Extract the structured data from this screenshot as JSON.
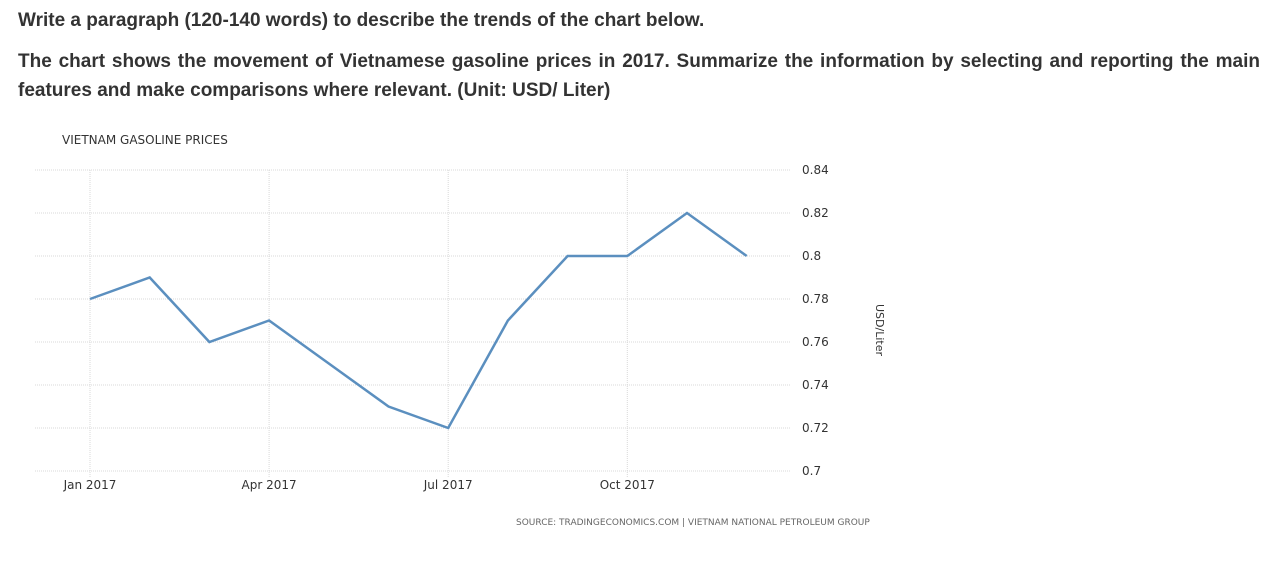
{
  "prompt": {
    "title": "Write a paragraph (120-140 words) to describe the trends of the chart below.",
    "body": "The chart shows the movement of Vietnamese gasoline prices in 2017. Summarize the information by selecting and reporting the main features and make comparisons where relevant. (Unit: USD/ Liter)"
  },
  "chart_data": {
    "type": "line",
    "title": "VIETNAM GASOLINE PRICES",
    "ylabel": "USD/Liter",
    "source": "SOURCE: TRADINGECONOMICS.COM | VIETNAM NATIONAL PETROLEUM GROUP",
    "x": [
      "2017-01",
      "2017-02",
      "2017-03",
      "2017-04",
      "2017-05",
      "2017-06",
      "2017-07",
      "2017-08",
      "2017-09",
      "2017-10",
      "2017-11",
      "2017-12"
    ],
    "x_ticks": [
      {
        "month_index": 0,
        "label": "Jan 2017"
      },
      {
        "month_index": 3,
        "label": "Apr 2017"
      },
      {
        "month_index": 6,
        "label": "Jul 2017"
      },
      {
        "month_index": 9,
        "label": "Oct 2017"
      }
    ],
    "series": [
      {
        "values": [
          0.78,
          0.79,
          0.76,
          0.77,
          0.75,
          0.73,
          0.72,
          0.77,
          0.8,
          0.8,
          0.82,
          0.8
        ]
      }
    ],
    "ylim": [
      0.7,
      0.84
    ],
    "y_ticks": [
      "0.84",
      "0.82",
      "0.8",
      "0.78",
      "0.76",
      "0.74",
      "0.72",
      "0.7"
    ],
    "y_axis_side": "right",
    "grid": true,
    "line_color": "#5b8fbf",
    "grid_color": "#d8d8d8"
  }
}
